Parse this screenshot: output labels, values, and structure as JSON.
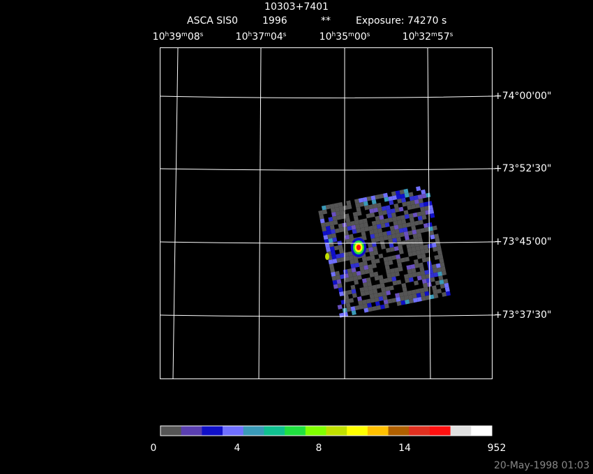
{
  "header": {
    "title": "10303+7401",
    "instrument": "ASCA SIS0",
    "year": "1996",
    "flag": "**",
    "exposure": "Exposure: 74270 s"
  },
  "ra_labels": [
    "10h39m08s",
    "10h37m04s",
    "10h35m00s",
    "10h32m57s"
  ],
  "dec_labels": [
    "+74°00'00\"",
    "+73°52'30\"",
    "+73°45'00\"",
    "+73°37'30\""
  ],
  "colorbar": {
    "labels": [
      "0",
      "4",
      "8",
      "14",
      "952"
    ]
  },
  "footer": {
    "timestamp": "20-May-1998 01:03"
  }
}
